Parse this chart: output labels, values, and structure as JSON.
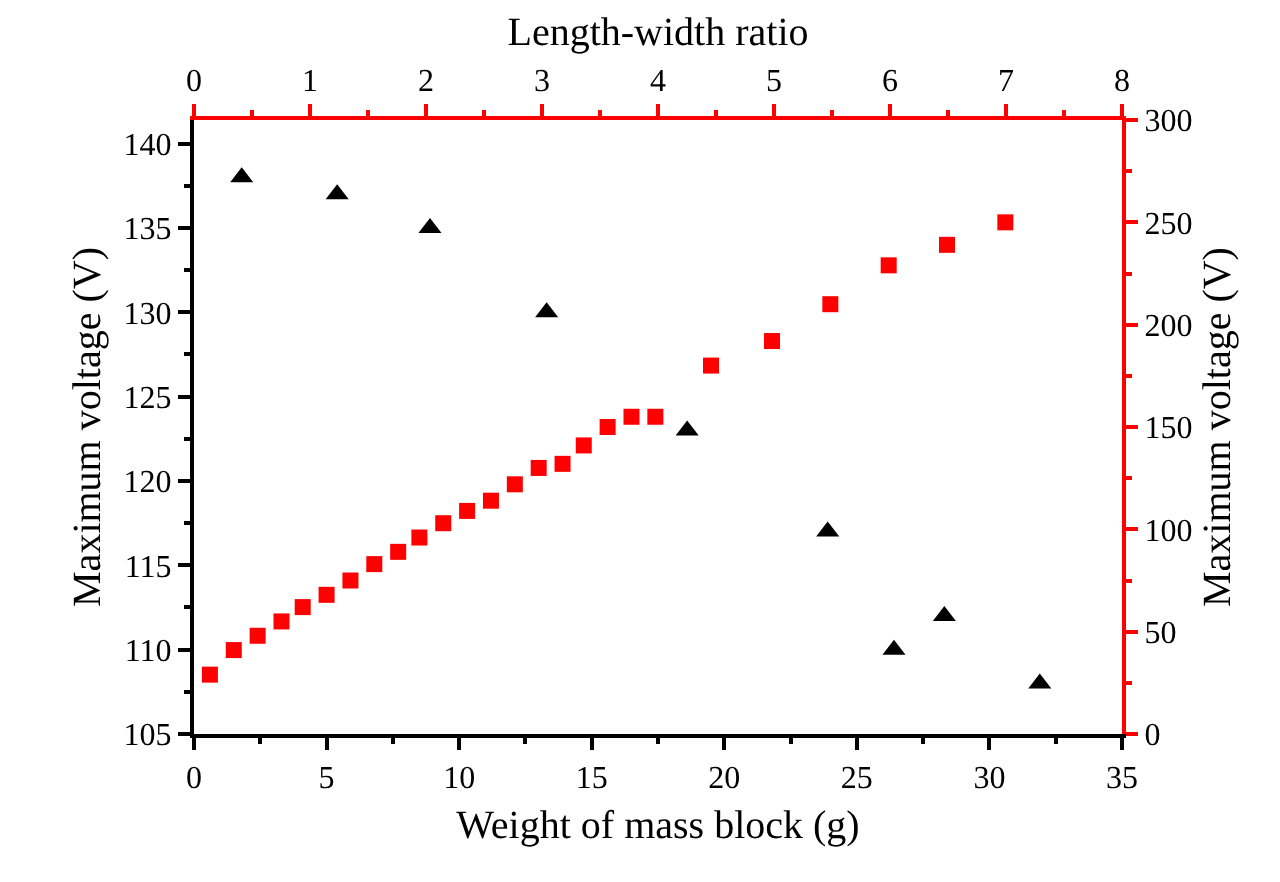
{
  "chart_data": {
    "type": "scatter",
    "xlabel": "Weight of mass block (g)",
    "ylabel": "Maximum voltage (V)",
    "y2label": "Maximum voltage (V)",
    "x2label": "Length-width ratio",
    "xlim": [
      0,
      35
    ],
    "xticks": [
      0,
      5,
      10,
      15,
      20,
      25,
      30,
      35
    ],
    "ylim": [
      105,
      141.4
    ],
    "yticks": [
      105,
      110,
      115,
      120,
      125,
      130,
      135,
      140
    ],
    "y2lim": [
      0,
      300
    ],
    "y2ticks": [
      0,
      50,
      100,
      150,
      200,
      250,
      300
    ],
    "x2lim": [
      0,
      8
    ],
    "x2ticks": [
      0,
      1,
      2,
      3,
      4,
      5,
      6,
      7,
      8
    ],
    "series": [
      {
        "color": "#000000",
        "marker": "triangle",
        "x": [
          1.8,
          5.4,
          8.9,
          13.3,
          18.6,
          23.9,
          26.4,
          28.3,
          31.9
        ],
        "values": [
          138,
          137,
          135,
          130,
          123,
          117,
          110,
          112,
          108
        ]
      },
      {
        "color": "#ff0000",
        "marker": "square",
        "axis": "y2",
        "x": [
          0.6,
          1.5,
          2.4,
          3.3,
          4.1,
          5.0,
          5.9,
          6.8,
          7.7,
          8.5,
          9.4,
          10.3,
          11.2,
          12.1,
          13.0,
          13.9,
          14.7,
          15.6,
          16.5,
          17.4,
          19.5,
          21.8,
          24.0,
          26.2,
          28.4,
          30.6
        ],
        "values": [
          29,
          41,
          48,
          55,
          62,
          68,
          75,
          83,
          89,
          96,
          103,
          109,
          114,
          122,
          130,
          132,
          141,
          150,
          155,
          155,
          180,
          192,
          210,
          229,
          239,
          250
        ]
      }
    ]
  }
}
